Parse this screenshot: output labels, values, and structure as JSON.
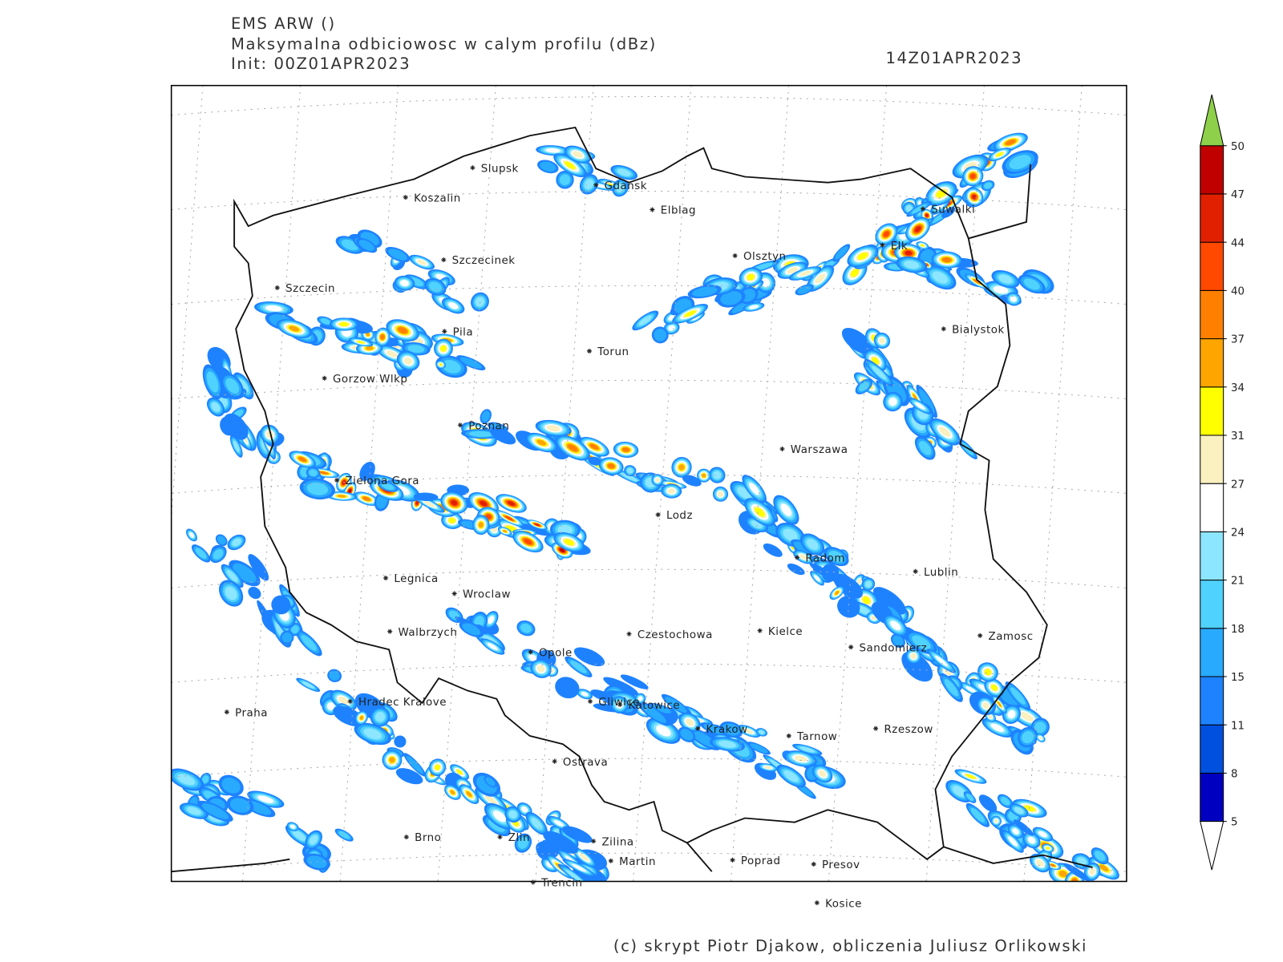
{
  "header": {
    "model": "EMS ARW ()",
    "title": "Maksymalna odbiciowosc w calym profilu (dBz)",
    "init": "Init: 00Z01APR2023",
    "valid": "14Z01APR2023"
  },
  "cities": [
    "Slupsk",
    "Koszalin",
    "Gdansk",
    "Elblag",
    "Szczecinek",
    "Olsztyn",
    "Suwalki",
    "Elk",
    "Szczecin",
    "Pila",
    "Torun",
    "Bialystok",
    "Gorzow Wlkp",
    "Poznan",
    "Warszawa",
    "Zielona Gora",
    "Lodz",
    "Radom",
    "Lublin",
    "Legnica",
    "Wroclaw",
    "Walbrzych",
    "Czestochowa",
    "Kielce",
    "Zamosc",
    "Sandomierz",
    "Opole",
    "Praha",
    "Hradec Kralove",
    "Gliwice",
    "Katowice",
    "Krakow",
    "Tarnow",
    "Rzeszow",
    "Ostrava",
    "Brno",
    "Zlin",
    "Zilina",
    "Martin",
    "Poprad",
    "Presov",
    "Trencin",
    "Kosice"
  ],
  "colorbar": {
    "levels": [
      5,
      8,
      11,
      15,
      18,
      21,
      24,
      27,
      31,
      34,
      37,
      40,
      44,
      47,
      50
    ],
    "colors": [
      "#0000c0",
      "#0050e0",
      "#1e82ff",
      "#28aaff",
      "#50d2ff",
      "#8ce6ff",
      "#ffffff",
      "#faf0c0",
      "#ffff00",
      "#ffa500",
      "#ff8000",
      "#ff4800",
      "#e02000",
      "#c00000"
    ],
    "over_color": "#8ed04a",
    "under_color": "#ffffff"
  },
  "footer": "(c) skrypt Piotr Djakow, obliczenia Juliusz Orlikowski"
}
